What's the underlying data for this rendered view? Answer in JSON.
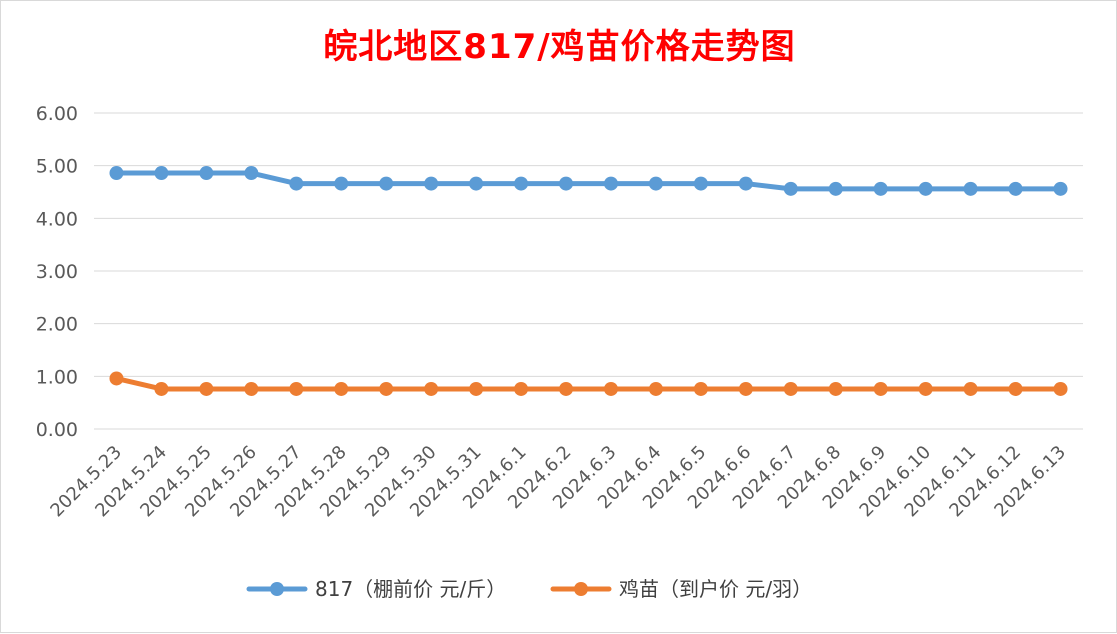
{
  "chart_data": {
    "type": "line",
    "title": "皖北地区817/鸡苗价格走势图",
    "categories": [
      "2024.5.23",
      "2024.5.24",
      "2024.5.25",
      "2024.5.26",
      "2024.5.27",
      "2024.5.28",
      "2024.5.29",
      "2024.5.30",
      "2024.5.31",
      "2024.6.1",
      "2024.6.2",
      "2024.6.3",
      "2024.6.4",
      "2024.6.5",
      "2024.6.6",
      "2024.6.7",
      "2024.6.8",
      "2024.6.9",
      "2024.6.10",
      "2024.6.11",
      "2024.6.12",
      "2024.6.13"
    ],
    "series": [
      {
        "name": "817（棚前价 元/斤）",
        "color": "#5b9bd5",
        "values": [
          4.86,
          4.86,
          4.86,
          4.86,
          4.66,
          4.66,
          4.66,
          4.66,
          4.66,
          4.66,
          4.66,
          4.66,
          4.66,
          4.66,
          4.66,
          4.56,
          4.56,
          4.56,
          4.56,
          4.56,
          4.56,
          4.56
        ]
      },
      {
        "name": "鸡苗（到户价 元/羽）",
        "color": "#ed7d31",
        "values": [
          0.96,
          0.76,
          0.76,
          0.76,
          0.76,
          0.76,
          0.76,
          0.76,
          0.76,
          0.76,
          0.76,
          0.76,
          0.76,
          0.76,
          0.76,
          0.76,
          0.76,
          0.76,
          0.76,
          0.76,
          0.76,
          0.76
        ]
      }
    ],
    "yticks": [
      "0.00",
      "1.00",
      "2.00",
      "3.00",
      "4.00",
      "5.00",
      "6.00"
    ],
    "ylim": [
      0,
      6
    ],
    "grid": true,
    "legend": "bottom",
    "xlabel": "",
    "ylabel": "",
    "title_color": "#ff0000"
  }
}
